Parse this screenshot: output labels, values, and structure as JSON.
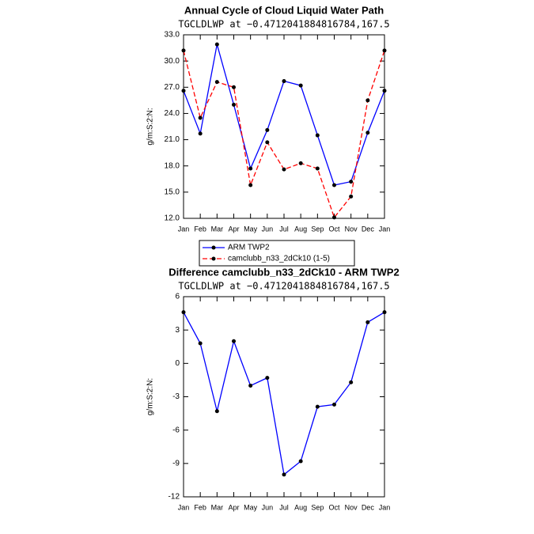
{
  "chart_data": [
    {
      "type": "line",
      "title": "Annual Cycle of Cloud Liquid Water Path",
      "subtitle": "TGCLDLWP at −0.4712041884816784,167.5",
      "y_label": "g/m:S:2:N:",
      "categories": [
        "Jan",
        "Feb",
        "Mar",
        "Apr",
        "May",
        "Jun",
        "Jul",
        "Aug",
        "Sep",
        "Oct",
        "Nov",
        "Dec",
        "Jan"
      ],
      "ylim": [
        12,
        33
      ],
      "yticks": [
        {
          "value": 12,
          "label": "12.0"
        },
        {
          "value": 15,
          "label": "15.0"
        },
        {
          "value": 18,
          "label": "18.0"
        },
        {
          "value": 21,
          "label": "21.0"
        },
        {
          "value": 24,
          "label": "24.0"
        },
        {
          "value": 27,
          "label": "27.0"
        },
        {
          "value": 30,
          "label": "30.0"
        },
        {
          "value": 33,
          "label": "33.0"
        }
      ],
      "legend": "below",
      "series": [
        {
          "name": "ARM TWP2",
          "color": "#0000ff",
          "linestyle": "solid",
          "values": [
            26.6,
            21.7,
            31.9,
            25.0,
            17.7,
            22.1,
            27.7,
            27.2,
            21.5,
            15.8,
            16.2,
            21.8,
            26.6
          ]
        },
        {
          "name": "camclubb_n33_2dCk10 (1-5)",
          "color": "#ff0000",
          "linestyle": "dashed",
          "values": [
            31.2,
            23.5,
            27.6,
            27.0,
            15.8,
            20.7,
            17.6,
            18.3,
            17.7,
            12.1,
            14.5,
            25.5,
            31.2
          ]
        }
      ]
    },
    {
      "type": "line",
      "title": "Difference camclubb_n33_2dCk10 - ARM TWP2",
      "subtitle": "TGCLDLWP at −0.4712041884816784,167.5",
      "y_label": "g/m:S:2:N:",
      "categories": [
        "Jan",
        "Feb",
        "Mar",
        "Apr",
        "May",
        "Jun",
        "Jul",
        "Aug",
        "Sep",
        "Oct",
        "Nov",
        "Dec",
        "Jan"
      ],
      "ylim": [
        -12,
        6
      ],
      "yticks": [
        -12,
        -9,
        -6,
        -3,
        0,
        3,
        6
      ],
      "series": [
        {
          "color": "#0000ff",
          "linestyle": "solid",
          "values": [
            4.6,
            1.8,
            -4.3,
            2.0,
            -2.0,
            -1.3,
            -10.0,
            -8.8,
            -3.9,
            -3.7,
            -1.7,
            3.7,
            4.6
          ]
        }
      ]
    }
  ]
}
